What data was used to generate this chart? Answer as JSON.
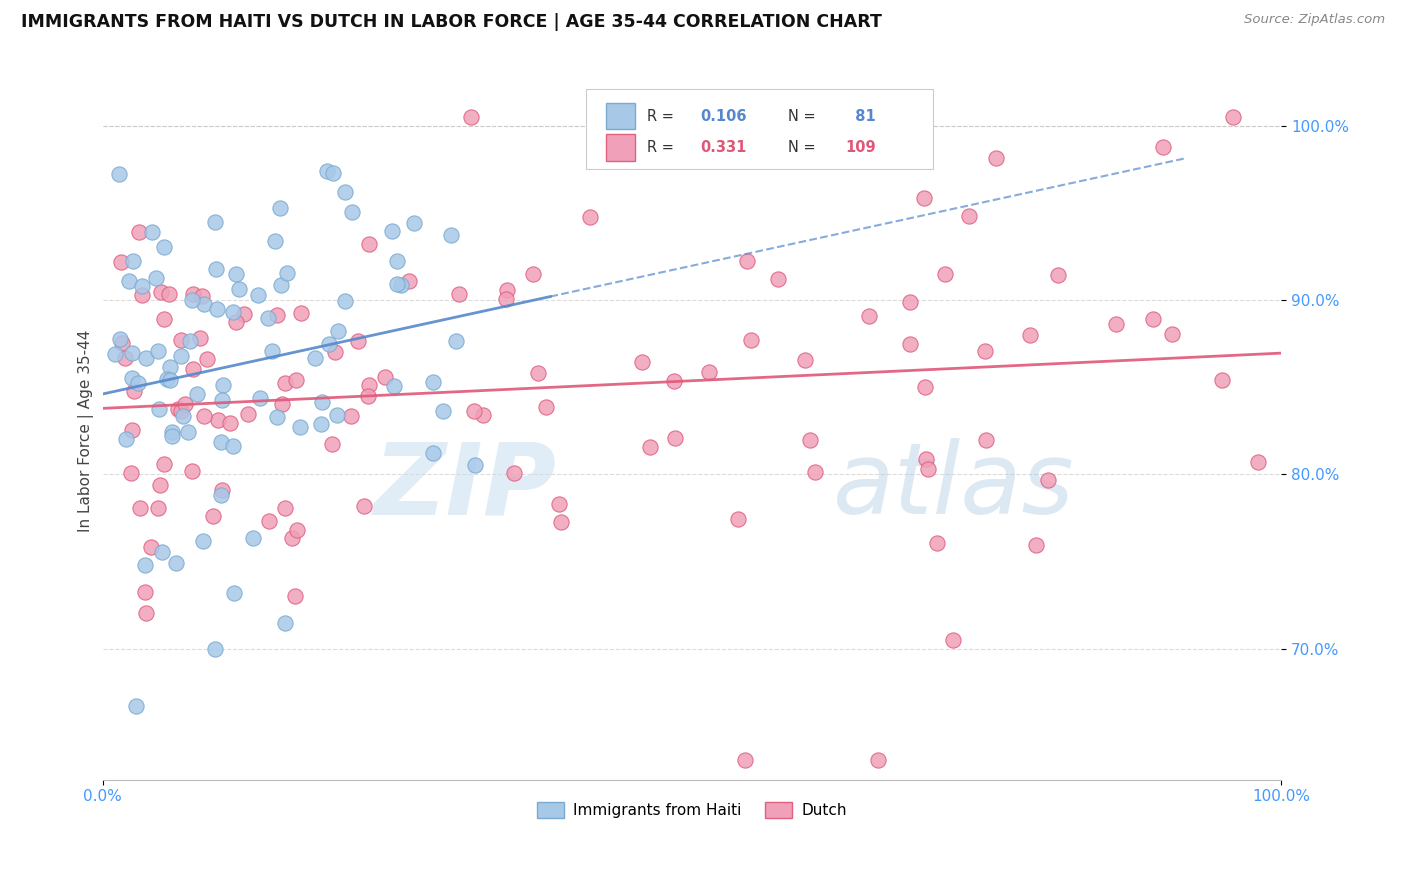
{
  "title": "IMMIGRANTS FROM HAITI VS DUTCH IN LABOR FORCE | AGE 35-44 CORRELATION CHART",
  "source_text": "Source: ZipAtlas.com",
  "ylabel": "In Labor Force | Age 35-44",
  "xlim": [
    0.0,
    1.0
  ],
  "ylim": [
    0.625,
    1.025
  ],
  "y_tick_values": [
    0.7,
    0.8,
    0.9,
    1.0
  ],
  "haiti_color": "#a8c8e8",
  "dutch_color": "#f0a0b8",
  "haiti_edge": "#7aaad0",
  "dutch_edge": "#e06080",
  "trendline_haiti_color": "#5588cc",
  "trendline_dutch_color": "#e05878",
  "R_haiti": 0.106,
  "N_haiti": 81,
  "R_dutch": 0.331,
  "N_dutch": 109,
  "watermark_zip": "ZIP",
  "watermark_atlas": "atlas",
  "legend_box_color": "#ffffff",
  "legend_border_color": "#cccccc",
  "tick_color": "#4499ff",
  "grid_color": "#cccccc"
}
